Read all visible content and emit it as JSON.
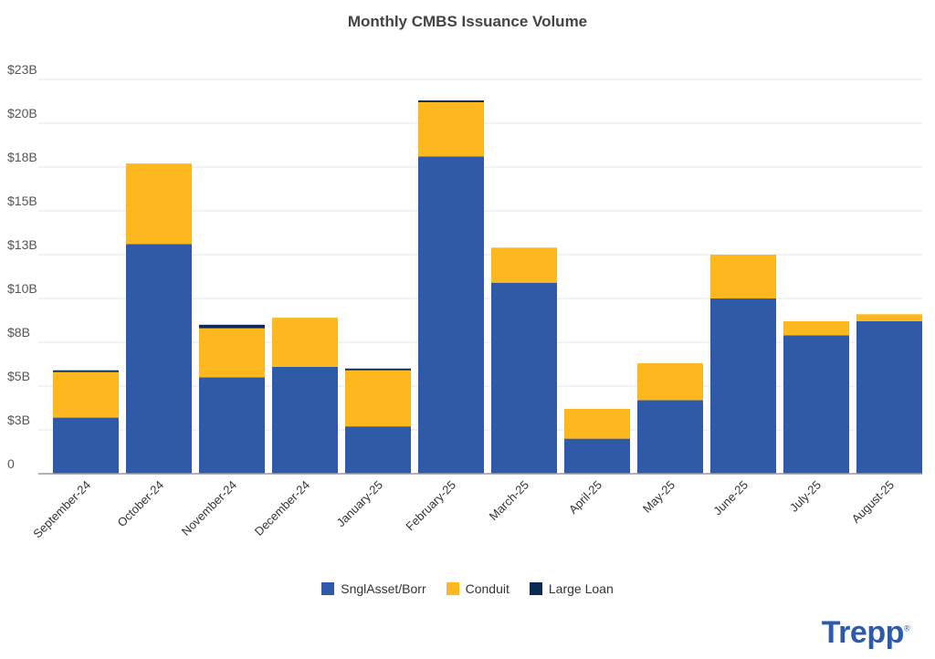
{
  "chart_data": {
    "type": "bar",
    "stacked": true,
    "title": "Monthly CMBS Issuance Volume",
    "xlabel": "",
    "ylabel": "",
    "ylim": [
      0,
      22.5
    ],
    "grid": true,
    "legend_placement": "bottom",
    "yticks": [
      0,
      2.5,
      5,
      7.5,
      10,
      12.5,
      15,
      17.5,
      20,
      22.5
    ],
    "ytick_labels": [
      "0",
      "$3B",
      "$5B",
      "$8B",
      "$10B",
      "$13B",
      "$15B",
      "$18B",
      "$20B",
      "$23B"
    ],
    "categories": [
      "September-24",
      "October-24",
      "November-24",
      "December-24",
      "January-25",
      "February-25",
      "March-25",
      "April-25",
      "May-25",
      "June-25",
      "July-25",
      "August-25"
    ],
    "series": [
      {
        "name": "SnglAsset/Borr",
        "color": "#2e5aa8",
        "values": [
          3.2,
          13.1,
          5.5,
          6.1,
          2.7,
          18.1,
          10.9,
          2.0,
          4.2,
          10.0,
          7.9,
          8.7
        ]
      },
      {
        "name": "Conduit",
        "color": "#fdb71f",
        "values": [
          2.6,
          4.6,
          2.8,
          2.8,
          3.2,
          3.1,
          2.0,
          1.7,
          2.1,
          2.5,
          0.8,
          0.4
        ]
      },
      {
        "name": "Large Loan",
        "color": "#0b2a55",
        "values": [
          0.1,
          0,
          0.2,
          0,
          0.1,
          0.1,
          0,
          0,
          0,
          0,
          0,
          0
        ]
      }
    ]
  },
  "brand": {
    "logo": "Trepp",
    "mark": "®"
  }
}
